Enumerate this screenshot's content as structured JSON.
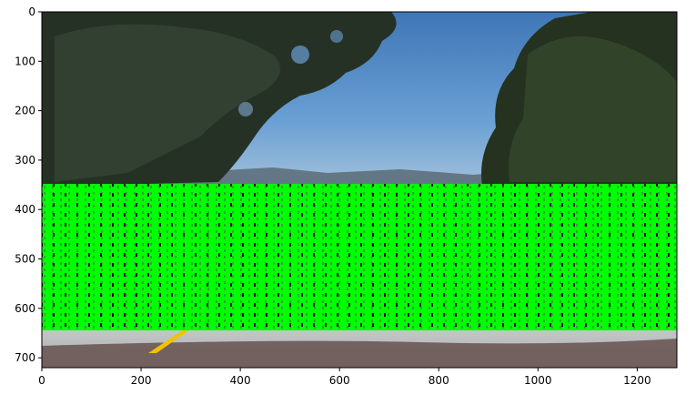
{
  "plot": {
    "x_ticks": [
      "0",
      "200",
      "400",
      "600",
      "800",
      "1000",
      "1200"
    ],
    "y_ticks": [
      "0",
      "100",
      "200",
      "300",
      "400",
      "500",
      "600",
      "700"
    ],
    "xlim": [
      0,
      1280
    ],
    "ylim": [
      720,
      0
    ],
    "grid": false
  },
  "image_content": {
    "scene": "road-scene-with-trees-and-sky",
    "sliding_window_region": {
      "y_start": 350,
      "y_end": 640,
      "x_start": 0,
      "x_end": 1280
    },
    "colors": {
      "window_boxes": "#00ff00",
      "sky": "#4f86c6",
      "trees": "#243224",
      "road": "#bfc3c3",
      "lane_line": "#f2c200"
    }
  }
}
